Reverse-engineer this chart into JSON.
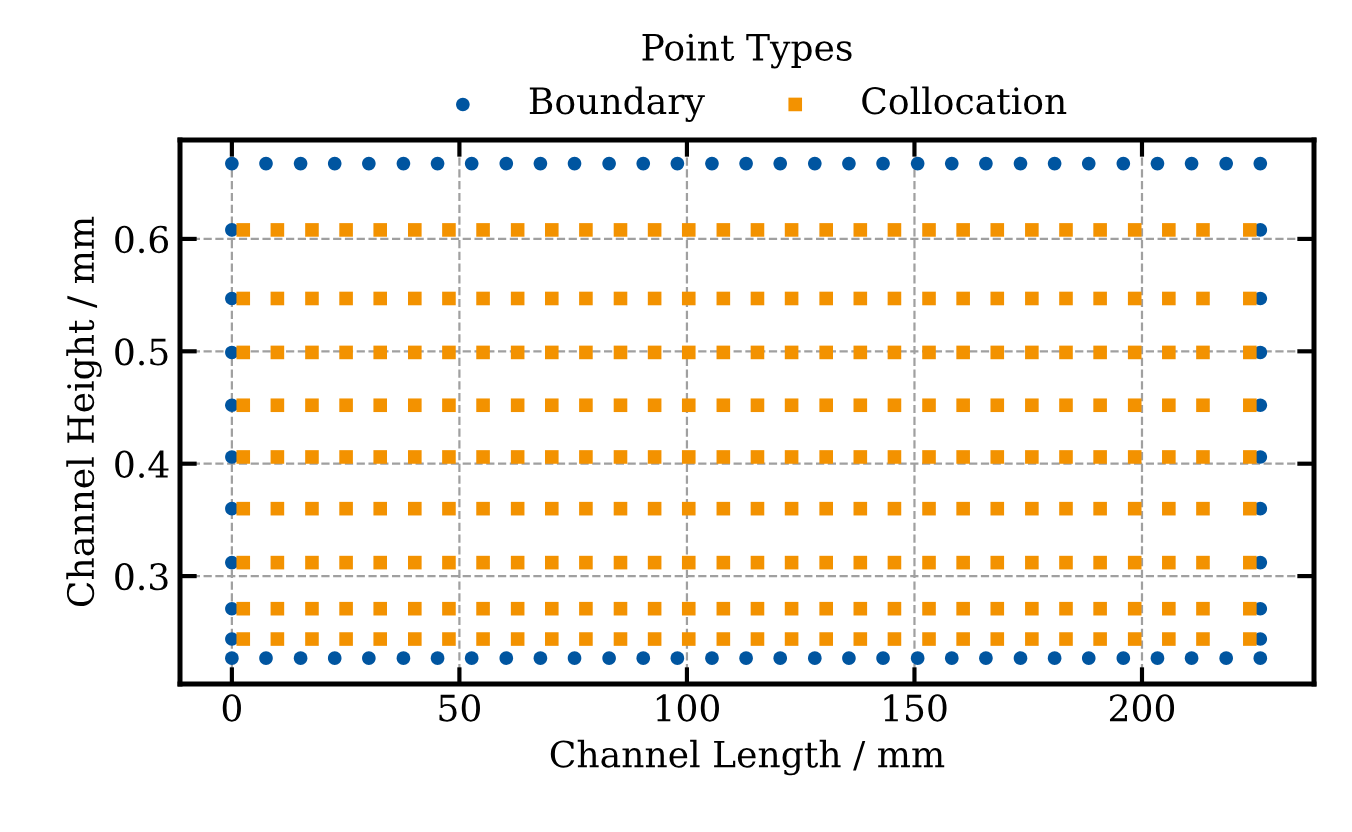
{
  "chart_data": {
    "type": "scatter",
    "xlabel": "Channel Length / mm",
    "ylabel": "Channel Height / mm",
    "legend_title": "Point Types",
    "legend": "top",
    "grid": true,
    "xlim": [
      -11.4,
      237.8
    ],
    "ylim": [
      0.204,
      0.688
    ],
    "xticks": [
      0,
      50,
      100,
      150,
      200
    ],
    "yticks": [
      0.3,
      0.4,
      0.5,
      0.6
    ],
    "series": [
      {
        "name": "Boundary",
        "color": "#0055a0",
        "marker": "circle",
        "x": [
          0,
          7.5,
          15.1,
          22.6,
          30.1,
          37.7,
          45.2,
          52.7,
          60.3,
          67.8,
          75.3,
          82.9,
          90.4,
          97.9,
          105.5,
          113.0,
          120.5,
          128.1,
          135.6,
          143.1,
          150.7,
          158.2,
          165.7,
          173.3,
          180.8,
          188.3,
          195.9,
          203.4,
          210.9,
          218.5,
          226.0,
          0,
          7.5,
          15.1,
          22.6,
          30.1,
          37.7,
          45.2,
          52.7,
          60.3,
          67.8,
          75.3,
          82.9,
          90.4,
          97.9,
          105.5,
          113.0,
          120.5,
          128.1,
          135.6,
          143.1,
          150.7,
          158.2,
          165.7,
          173.3,
          180.8,
          188.3,
          195.9,
          203.4,
          210.9,
          218.5,
          226.0,
          0,
          0,
          0,
          0,
          0,
          0,
          0,
          0,
          0,
          226.0,
          226.0,
          226.0,
          226.0,
          226.0,
          226.0,
          226.0,
          226.0,
          226.0
        ],
        "values": [
          0.227,
          0.227,
          0.227,
          0.227,
          0.227,
          0.227,
          0.227,
          0.227,
          0.227,
          0.227,
          0.227,
          0.227,
          0.227,
          0.227,
          0.227,
          0.227,
          0.227,
          0.227,
          0.227,
          0.227,
          0.227,
          0.227,
          0.227,
          0.227,
          0.227,
          0.227,
          0.227,
          0.227,
          0.227,
          0.227,
          0.227,
          0.667,
          0.667,
          0.667,
          0.667,
          0.667,
          0.667,
          0.667,
          0.667,
          0.667,
          0.667,
          0.667,
          0.667,
          0.667,
          0.667,
          0.667,
          0.667,
          0.667,
          0.667,
          0.667,
          0.667,
          0.667,
          0.667,
          0.667,
          0.667,
          0.667,
          0.667,
          0.667,
          0.667,
          0.667,
          0.667,
          0.667,
          0.608,
          0.547,
          0.499,
          0.452,
          0.406,
          0.36,
          0.312,
          0.271,
          0.244,
          0.608,
          0.547,
          0.499,
          0.452,
          0.406,
          0.36,
          0.312,
          0.271,
          0.244
        ]
      },
      {
        "name": "Collocation",
        "color": "#f39200",
        "marker": "square",
        "x": [
          2.5,
          10.0,
          17.6,
          25.1,
          32.6,
          40.2,
          47.7,
          55.2,
          62.8,
          70.3,
          77.8,
          85.4,
          92.9,
          100.4,
          108.0,
          115.5,
          123.0,
          130.6,
          138.1,
          145.6,
          153.2,
          160.7,
          168.2,
          175.8,
          183.3,
          190.8,
          198.4,
          205.9,
          213.4,
          223.7,
          2.5,
          10.0,
          17.6,
          25.1,
          32.6,
          40.2,
          47.7,
          55.2,
          62.8,
          70.3,
          77.8,
          85.4,
          92.9,
          100.4,
          108.0,
          115.5,
          123.0,
          130.6,
          138.1,
          145.6,
          153.2,
          160.7,
          168.2,
          175.8,
          183.3,
          190.8,
          198.4,
          205.9,
          213.4,
          223.7,
          2.5,
          10.0,
          17.6,
          25.1,
          32.6,
          40.2,
          47.7,
          55.2,
          62.8,
          70.3,
          77.8,
          85.4,
          92.9,
          100.4,
          108.0,
          115.5,
          123.0,
          130.6,
          138.1,
          145.6,
          153.2,
          160.7,
          168.2,
          175.8,
          183.3,
          190.8,
          198.4,
          205.9,
          213.4,
          223.7,
          2.5,
          10.0,
          17.6,
          25.1,
          32.6,
          40.2,
          47.7,
          55.2,
          62.8,
          70.3,
          77.8,
          85.4,
          92.9,
          100.4,
          108.0,
          115.5,
          123.0,
          130.6,
          138.1,
          145.6,
          153.2,
          160.7,
          168.2,
          175.8,
          183.3,
          190.8,
          198.4,
          205.9,
          213.4,
          223.7,
          2.5,
          10.0,
          17.6,
          25.1,
          32.6,
          40.2,
          47.7,
          55.2,
          62.8,
          70.3,
          77.8,
          85.4,
          92.9,
          100.4,
          108.0,
          115.5,
          123.0,
          130.6,
          138.1,
          145.6,
          153.2,
          160.7,
          168.2,
          175.8,
          183.3,
          190.8,
          198.4,
          205.9,
          213.4,
          223.7,
          2.5,
          10.0,
          17.6,
          25.1,
          32.6,
          40.2,
          47.7,
          55.2,
          62.8,
          70.3,
          77.8,
          85.4,
          92.9,
          100.4,
          108.0,
          115.5,
          123.0,
          130.6,
          138.1,
          145.6,
          153.2,
          160.7,
          168.2,
          175.8,
          183.3,
          190.8,
          198.4,
          205.9,
          213.4,
          223.7,
          2.5,
          10.0,
          17.6,
          25.1,
          32.6,
          40.2,
          47.7,
          55.2,
          62.8,
          70.3,
          77.8,
          85.4,
          92.9,
          100.4,
          108.0,
          115.5,
          123.0,
          130.6,
          138.1,
          145.6,
          153.2,
          160.7,
          168.2,
          175.8,
          183.3,
          190.8,
          198.4,
          205.9,
          213.4,
          223.7,
          2.5,
          10.0,
          17.6,
          25.1,
          32.6,
          40.2,
          47.7,
          55.2,
          62.8,
          70.3,
          77.8,
          85.4,
          92.9,
          100.4,
          108.0,
          115.5,
          123.0,
          130.6,
          138.1,
          145.6,
          153.2,
          160.7,
          168.2,
          175.8,
          183.3,
          190.8,
          198.4,
          205.9,
          213.4,
          223.7,
          2.5,
          10.0,
          17.6,
          25.1,
          32.6,
          40.2,
          47.7,
          55.2,
          62.8,
          70.3,
          77.8,
          85.4,
          92.9,
          100.4,
          108.0,
          115.5,
          123.0,
          130.6,
          138.1,
          145.6,
          153.2,
          160.7,
          168.2,
          175.8,
          183.3,
          190.8,
          198.4,
          205.9,
          213.4,
          223.7
        ],
        "values": [
          0.608,
          0.608,
          0.608,
          0.608,
          0.608,
          0.608,
          0.608,
          0.608,
          0.608,
          0.608,
          0.608,
          0.608,
          0.608,
          0.608,
          0.608,
          0.608,
          0.608,
          0.608,
          0.608,
          0.608,
          0.608,
          0.608,
          0.608,
          0.608,
          0.608,
          0.608,
          0.608,
          0.608,
          0.608,
          0.608,
          0.547,
          0.547,
          0.547,
          0.547,
          0.547,
          0.547,
          0.547,
          0.547,
          0.547,
          0.547,
          0.547,
          0.547,
          0.547,
          0.547,
          0.547,
          0.547,
          0.547,
          0.547,
          0.547,
          0.547,
          0.547,
          0.547,
          0.547,
          0.547,
          0.547,
          0.547,
          0.547,
          0.547,
          0.547,
          0.547,
          0.499,
          0.499,
          0.499,
          0.499,
          0.499,
          0.499,
          0.499,
          0.499,
          0.499,
          0.499,
          0.499,
          0.499,
          0.499,
          0.499,
          0.499,
          0.499,
          0.499,
          0.499,
          0.499,
          0.499,
          0.499,
          0.499,
          0.499,
          0.499,
          0.499,
          0.499,
          0.499,
          0.499,
          0.499,
          0.499,
          0.452,
          0.452,
          0.452,
          0.452,
          0.452,
          0.452,
          0.452,
          0.452,
          0.452,
          0.452,
          0.452,
          0.452,
          0.452,
          0.452,
          0.452,
          0.452,
          0.452,
          0.452,
          0.452,
          0.452,
          0.452,
          0.452,
          0.452,
          0.452,
          0.452,
          0.452,
          0.452,
          0.452,
          0.452,
          0.452,
          0.406,
          0.406,
          0.406,
          0.406,
          0.406,
          0.406,
          0.406,
          0.406,
          0.406,
          0.406,
          0.406,
          0.406,
          0.406,
          0.406,
          0.406,
          0.406,
          0.406,
          0.406,
          0.406,
          0.406,
          0.406,
          0.406,
          0.406,
          0.406,
          0.406,
          0.406,
          0.406,
          0.406,
          0.406,
          0.406,
          0.36,
          0.36,
          0.36,
          0.36,
          0.36,
          0.36,
          0.36,
          0.36,
          0.36,
          0.36,
          0.36,
          0.36,
          0.36,
          0.36,
          0.36,
          0.36,
          0.36,
          0.36,
          0.36,
          0.36,
          0.36,
          0.36,
          0.36,
          0.36,
          0.36,
          0.36,
          0.36,
          0.36,
          0.36,
          0.36,
          0.312,
          0.312,
          0.312,
          0.312,
          0.312,
          0.312,
          0.312,
          0.312,
          0.312,
          0.312,
          0.312,
          0.312,
          0.312,
          0.312,
          0.312,
          0.312,
          0.312,
          0.312,
          0.312,
          0.312,
          0.312,
          0.312,
          0.312,
          0.312,
          0.312,
          0.312,
          0.312,
          0.312,
          0.312,
          0.312,
          0.271,
          0.271,
          0.271,
          0.271,
          0.271,
          0.271,
          0.271,
          0.271,
          0.271,
          0.271,
          0.271,
          0.271,
          0.271,
          0.271,
          0.271,
          0.271,
          0.271,
          0.271,
          0.271,
          0.271,
          0.271,
          0.271,
          0.271,
          0.271,
          0.271,
          0.271,
          0.271,
          0.271,
          0.271,
          0.271,
          0.244,
          0.244,
          0.244,
          0.244,
          0.244,
          0.244,
          0.244,
          0.244,
          0.244,
          0.244,
          0.244,
          0.244,
          0.244,
          0.244,
          0.244,
          0.244,
          0.244,
          0.244,
          0.244,
          0.244,
          0.244,
          0.244,
          0.244,
          0.244,
          0.244,
          0.244,
          0.244,
          0.244,
          0.244,
          0.244
        ]
      }
    ]
  }
}
